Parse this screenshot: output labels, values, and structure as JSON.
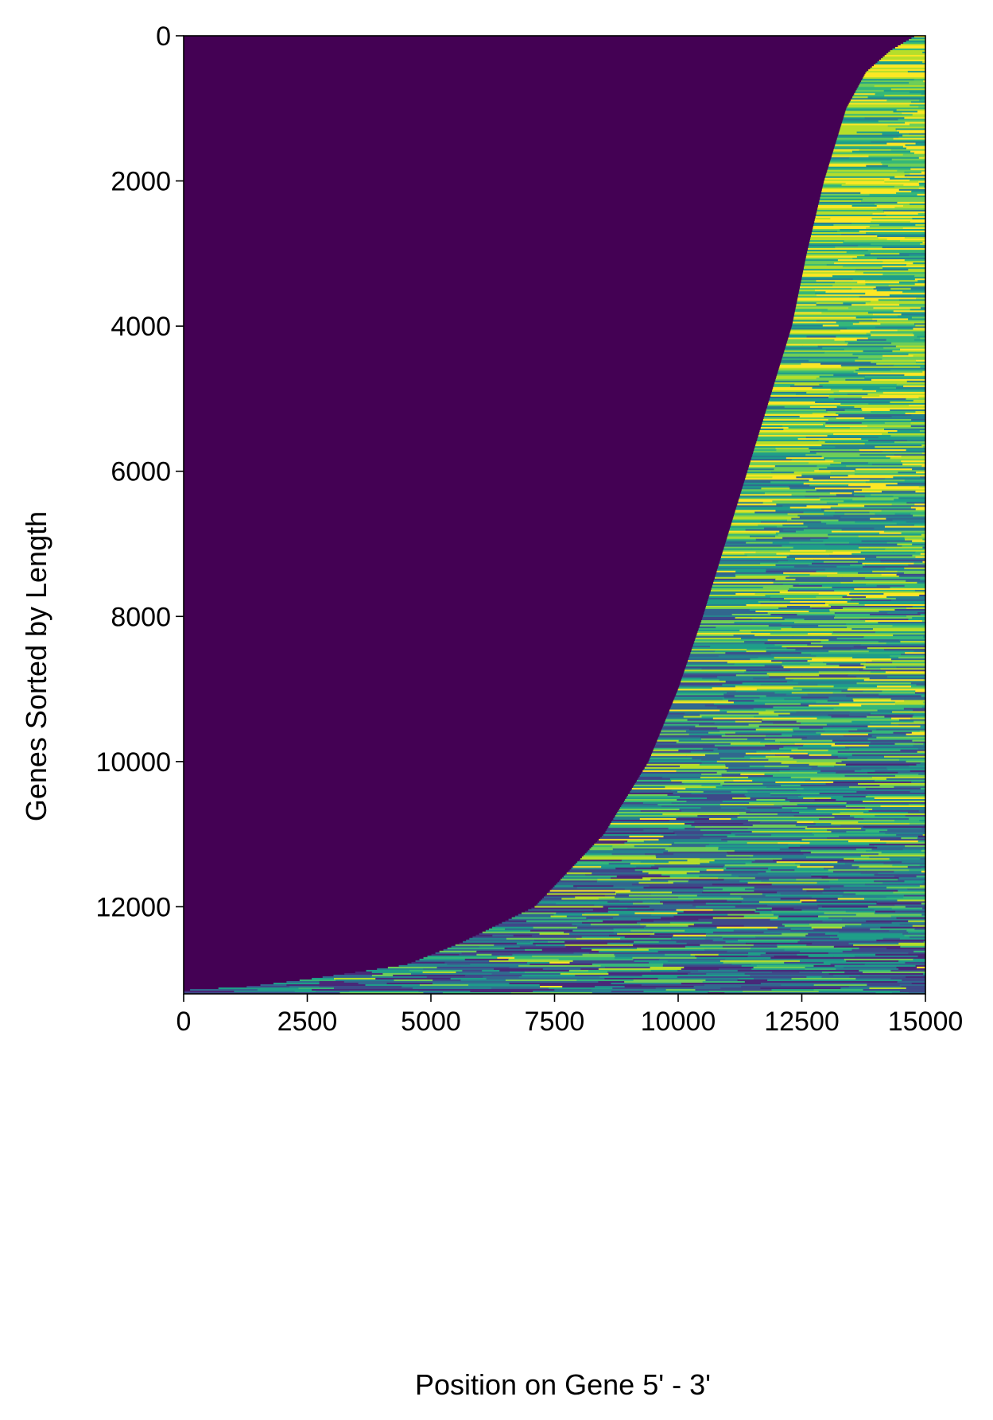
{
  "chart_data": {
    "type": "heatmap",
    "title": "",
    "xlabel": "Position on Gene 5' - 3'",
    "ylabel": "Genes Sorted by Length",
    "xlim": [
      0,
      15000
    ],
    "ylim": [
      13200,
      0
    ],
    "x_ticks": [
      0,
      2500,
      5000,
      7500,
      10000,
      12500,
      15000
    ],
    "y_ticks": [
      0,
      2000,
      4000,
      6000,
      8000,
      10000,
      12000
    ],
    "x_tick_labels": [
      "0",
      "2500",
      "5000",
      "7500",
      "10000",
      "12500",
      "15000"
    ],
    "y_tick_labels": [
      "0",
      "2000",
      "4000",
      "6000",
      "8000",
      "10000",
      "12000"
    ],
    "colormap": "viridis",
    "background_color": "#440154",
    "palette": [
      "#fde725",
      "#b5de2b",
      "#6ece58",
      "#35b779",
      "#1f9e89",
      "#26828e",
      "#31688e",
      "#3e4989",
      "#482878"
    ],
    "grid": false,
    "signal_start_boundary": [
      {
        "gene": 0,
        "position": 14800
      },
      {
        "gene": 200,
        "position": 14300
      },
      {
        "gene": 500,
        "position": 13800
      },
      {
        "gene": 1000,
        "position": 13400
      },
      {
        "gene": 2000,
        "position": 12950
      },
      {
        "gene": 3000,
        "position": 12600
      },
      {
        "gene": 4000,
        "position": 12300
      },
      {
        "gene": 5000,
        "position": 11850
      },
      {
        "gene": 6000,
        "position": 11400
      },
      {
        "gene": 7000,
        "position": 10950
      },
      {
        "gene": 8000,
        "position": 10500
      },
      {
        "gene": 9000,
        "position": 10000
      },
      {
        "gene": 10000,
        "position": 9400
      },
      {
        "gene": 11000,
        "position": 8500
      },
      {
        "gene": 12000,
        "position": 7100
      },
      {
        "gene": 12500,
        "position": 5600
      },
      {
        "gene": 12800,
        "position": 4500
      },
      {
        "gene": 13000,
        "position": 2500
      },
      {
        "gene": 13100,
        "position": 1300
      },
      {
        "gene": 13150,
        "position": 0
      },
      {
        "gene": 13200,
        "position": 0
      }
    ]
  }
}
